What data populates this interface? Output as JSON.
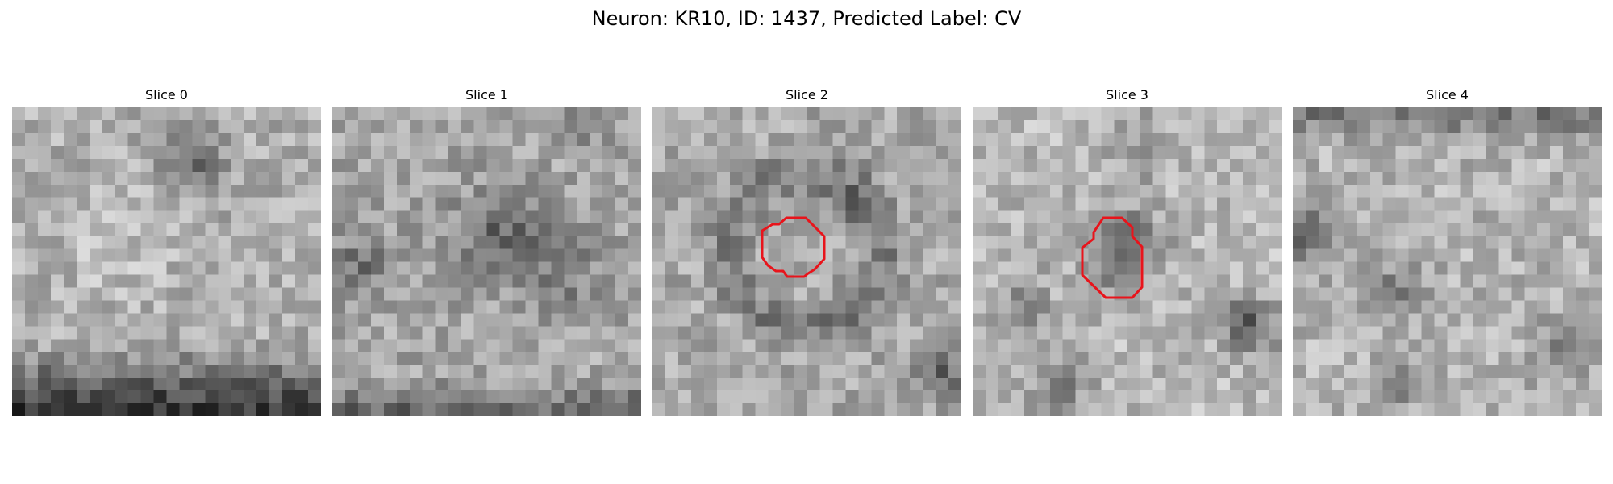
{
  "figure": {
    "title": "Neuron: KR10, ID: 1437, Predicted Label: CV"
  },
  "panels": [
    {
      "title": "Slice 0",
      "has_contour": false
    },
    {
      "title": "Slice 1",
      "has_contour": false
    },
    {
      "title": "Slice 2",
      "has_contour": true
    },
    {
      "title": "Slice 3",
      "has_contour": true
    },
    {
      "title": "Slice 4",
      "has_contour": false
    }
  ],
  "colors": {
    "contour": "#e8141b",
    "background": "#ffffff"
  }
}
